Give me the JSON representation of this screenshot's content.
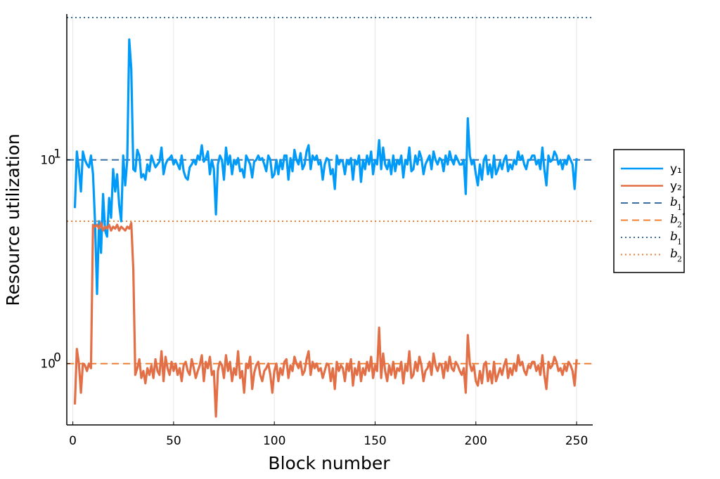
{
  "chart_data": {
    "type": "line",
    "xlabel": "Block number",
    "ylabel": "Resource utilization",
    "xlim": [
      -3,
      258
    ],
    "ylim": [
      0.5,
      52
    ],
    "yscale": "log",
    "xticks": [
      0,
      50,
      100,
      150,
      200,
      250
    ],
    "yticks": [
      {
        "value": 1,
        "base": "10",
        "exp": "0"
      },
      {
        "value": 10,
        "base": "10",
        "exp": "1"
      }
    ],
    "grid": true,
    "legend_position": "right",
    "series": [
      {
        "name": "y₁",
        "color": "#009af9",
        "style": "solid",
        "x": [
          1,
          2,
          3,
          4,
          5,
          6,
          7,
          8,
          9,
          10,
          11,
          12,
          13,
          14,
          15,
          16,
          17,
          18,
          19,
          20,
          21,
          22,
          23,
          24,
          25,
          26,
          27,
          28,
          29,
          30,
          31,
          32,
          33,
          34,
          35,
          36,
          37,
          38,
          39,
          40,
          41,
          42,
          43,
          44,
          45,
          46,
          47,
          48,
          49,
          50,
          51,
          52,
          53,
          54,
          55,
          56,
          57,
          58,
          59,
          60,
          61,
          62,
          63,
          64,
          65,
          66,
          67,
          68,
          69,
          70,
          71,
          72,
          73,
          74,
          75,
          76,
          77,
          78,
          79,
          80,
          81,
          82,
          83,
          84,
          85,
          86,
          87,
          88,
          89,
          90,
          91,
          92,
          93,
          94,
          95,
          96,
          97,
          98,
          99,
          100,
          101,
          102,
          103,
          104,
          105,
          106,
          107,
          108,
          109,
          110,
          111,
          112,
          113,
          114,
          115,
          116,
          117,
          118,
          119,
          120,
          121,
          122,
          123,
          124,
          125,
          126,
          127,
          128,
          129,
          130,
          131,
          132,
          133,
          134,
          135,
          136,
          137,
          138,
          139,
          140,
          141,
          142,
          143,
          144,
          145,
          146,
          147,
          148,
          149,
          150,
          151,
          152,
          153,
          154,
          155,
          156,
          157,
          158,
          159,
          160,
          161,
          162,
          163,
          164,
          165,
          166,
          167,
          168,
          169,
          170,
          171,
          172,
          173,
          174,
          175,
          176,
          177,
          178,
          179,
          180,
          181,
          182,
          183,
          184,
          185,
          186,
          187,
          188,
          189,
          190,
          191,
          192,
          193,
          194,
          195,
          196,
          197,
          198,
          199,
          200,
          201,
          202,
          203,
          204,
          205,
          206,
          207,
          208,
          209,
          210,
          211,
          212,
          213,
          214,
          215,
          216,
          217,
          218,
          219,
          220,
          221,
          222,
          223,
          224,
          225,
          226,
          227,
          228,
          229,
          230,
          231,
          232,
          233,
          234,
          235,
          236,
          237,
          238,
          239,
          240,
          241,
          242,
          243,
          244,
          245,
          246,
          247,
          248,
          249,
          250
        ],
        "y": [
          5.8,
          11.0,
          9.0,
          7.0,
          11.0,
          10.0,
          9.5,
          9.2,
          10.5,
          8.5,
          5.0,
          2.2,
          5.0,
          3.5,
          6.8,
          4.5,
          4.2,
          6.5,
          5.2,
          9.0,
          7.0,
          8.5,
          6.0,
          5.0,
          10.5,
          7.5,
          10.0,
          39.0,
          28.0,
          9.0,
          8.8,
          11.2,
          10.5,
          8.2,
          8.5,
          8.0,
          9.5,
          8.8,
          10.5,
          9.8,
          9.2,
          9.5,
          9.8,
          11.5,
          8.5,
          9.5,
          10.0,
          10.2,
          10.5,
          9.5,
          10.0,
          9.5,
          9.0,
          10.5,
          8.8,
          8.2,
          8.0,
          9.2,
          9.5,
          10.0,
          9.5,
          10.5,
          10.0,
          11.8,
          9.8,
          10.2,
          11.0,
          8.5,
          10.0,
          9.0,
          5.4,
          9.5,
          10.5,
          10.0,
          8.0,
          11.5,
          9.5,
          10.5,
          8.5,
          10.0,
          9.5,
          10.2,
          8.8,
          9.0,
          8.2,
          10.5,
          10.0,
          9.5,
          8.2,
          9.8,
          10.0,
          10.5,
          10.0,
          10.2,
          9.5,
          8.8,
          10.5,
          10.0,
          8.2,
          8.5,
          10.0,
          8.5,
          10.0,
          9.0,
          10.5,
          10.5,
          8.0,
          10.2,
          8.8,
          11.2,
          10.0,
          9.5,
          10.8,
          9.0,
          9.5,
          11.0,
          11.8,
          9.0,
          10.5,
          10.0,
          10.5,
          9.5,
          9.8,
          8.0,
          9.5,
          10.2,
          10.0,
          8.5,
          9.0,
          7.2,
          10.5,
          9.5,
          10.0,
          9.8,
          8.5,
          10.0,
          9.5,
          10.2,
          8.0,
          10.0,
          9.5,
          10.5,
          7.8,
          10.0,
          9.0,
          10.5,
          9.5,
          11.0,
          8.5,
          10.0,
          9.5,
          12.5,
          9.0,
          11.5,
          9.5,
          9.0,
          10.0,
          8.5,
          10.5,
          8.8,
          10.0,
          9.5,
          10.5,
          8.2,
          10.0,
          9.5,
          11.5,
          8.8,
          9.0,
          10.5,
          9.5,
          11.0,
          10.2,
          8.5,
          9.5,
          10.0,
          10.5,
          9.0,
          11.0,
          10.0,
          9.5,
          10.2,
          10.0,
          8.8,
          10.5,
          9.5,
          11.0,
          10.0,
          9.5,
          10.5,
          10.0,
          9.5,
          9.5,
          10.0,
          6.8,
          16.0,
          10.5,
          9.5,
          10.0,
          8.5,
          7.5,
          9.5,
          8.0,
          10.0,
          10.5,
          8.5,
          9.5,
          8.2,
          10.5,
          8.5,
          9.0,
          9.8,
          9.0,
          10.0,
          10.5,
          8.8,
          9.5,
          9.0,
          10.0,
          9.5,
          11.0,
          10.0,
          10.5,
          9.5,
          9.0,
          10.0,
          10.0,
          10.5,
          10.5,
          9.5,
          10.0,
          9.0,
          11.5,
          9.0,
          7.5,
          10.5,
          9.8,
          10.0,
          11.0,
          10.5,
          9.5,
          10.0,
          9.0,
          10.0,
          9.5,
          10.5,
          10.0,
          9.5,
          7.2,
          10.2
        ]
      },
      {
        "name": "y₂",
        "color": "#e26f46",
        "style": "solid",
        "x": [
          1,
          2,
          3,
          4,
          5,
          6,
          7,
          8,
          9,
          10,
          11,
          12,
          13,
          14,
          15,
          16,
          17,
          18,
          19,
          20,
          21,
          22,
          23,
          24,
          25,
          26,
          27,
          28,
          29,
          30,
          31,
          32,
          33,
          34,
          35,
          36,
          37,
          38,
          39,
          40,
          41,
          42,
          43,
          44,
          45,
          46,
          47,
          48,
          49,
          50,
          51,
          52,
          53,
          54,
          55,
          56,
          57,
          58,
          59,
          60,
          61,
          62,
          63,
          64,
          65,
          66,
          67,
          68,
          69,
          70,
          71,
          72,
          73,
          74,
          75,
          76,
          77,
          78,
          79,
          80,
          81,
          82,
          83,
          84,
          85,
          86,
          87,
          88,
          89,
          90,
          91,
          92,
          93,
          94,
          95,
          96,
          97,
          98,
          99,
          100,
          101,
          102,
          103,
          104,
          105,
          106,
          107,
          108,
          109,
          110,
          111,
          112,
          113,
          114,
          115,
          116,
          117,
          118,
          119,
          120,
          121,
          122,
          123,
          124,
          125,
          126,
          127,
          128,
          129,
          130,
          131,
          132,
          133,
          134,
          135,
          136,
          137,
          138,
          139,
          140,
          141,
          142,
          143,
          144,
          145,
          146,
          147,
          148,
          149,
          150,
          151,
          152,
          153,
          154,
          155,
          156,
          157,
          158,
          159,
          160,
          161,
          162,
          163,
          164,
          165,
          166,
          167,
          168,
          169,
          170,
          171,
          172,
          173,
          174,
          175,
          176,
          177,
          178,
          179,
          180,
          181,
          182,
          183,
          184,
          185,
          186,
          187,
          188,
          189,
          190,
          191,
          192,
          193,
          194,
          195,
          196,
          197,
          198,
          199,
          200,
          201,
          202,
          203,
          204,
          205,
          206,
          207,
          208,
          209,
          210,
          211,
          212,
          213,
          214,
          215,
          216,
          217,
          218,
          219,
          220,
          221,
          222,
          223,
          224,
          225,
          226,
          227,
          228,
          229,
          230,
          231,
          232,
          233,
          234,
          235,
          236,
          237,
          238,
          239,
          240,
          241,
          242,
          243,
          244,
          245,
          246,
          247,
          248,
          249,
          250
        ],
        "y": [
          0.63,
          1.18,
          1.0,
          0.72,
          1.0,
          0.98,
          0.92,
          1.0,
          0.95,
          4.8,
          4.7,
          4.8,
          4.6,
          4.9,
          4.5,
          4.7,
          4.6,
          4.8,
          4.5,
          4.7,
          4.6,
          4.8,
          4.5,
          4.7,
          4.6,
          4.5,
          4.7,
          4.6,
          4.9,
          2.9,
          0.88,
          0.95,
          1.05,
          0.85,
          0.92,
          0.8,
          0.95,
          0.88,
          0.98,
          0.85,
          1.05,
          0.92,
          0.88,
          1.15,
          0.82,
          1.08,
          0.95,
          0.88,
          1.02,
          0.92,
          1.0,
          0.88,
          0.95,
          0.82,
          0.98,
          1.02,
          0.92,
          0.88,
          1.05,
          0.95,
          0.85,
          0.92,
          0.98,
          1.1,
          0.82,
          1.02,
          0.95,
          1.08,
          0.88,
          0.92,
          0.55,
          0.92,
          1.02,
          0.98,
          0.85,
          1.1,
          0.92,
          1.02,
          0.82,
          0.95,
          0.88,
          1.15,
          0.85,
          0.92,
          0.72,
          1.0,
          0.95,
          1.08,
          0.75,
          0.9,
          0.98,
          1.02,
          0.88,
          0.82,
          0.92,
          0.95,
          1.0,
          0.88,
          0.72,
          0.92,
          1.0,
          0.82,
          0.95,
          0.88,
          1.02,
          1.05,
          0.85,
          0.98,
          0.92,
          1.08,
          1.0,
          0.95,
          1.02,
          0.88,
          0.92,
          1.05,
          1.15,
          0.88,
          1.02,
          0.95,
          1.0,
          0.92,
          0.95,
          0.85,
          0.92,
          1.0,
          0.98,
          0.82,
          0.95,
          0.75,
          1.02,
          0.92,
          0.98,
          0.95,
          0.82,
          1.0,
          0.92,
          1.05,
          0.78,
          0.95,
          0.88,
          1.02,
          0.82,
          0.95,
          0.88,
          1.02,
          0.92,
          1.08,
          0.85,
          0.98,
          0.92,
          1.5,
          0.85,
          1.12,
          0.92,
          0.82,
          0.98,
          0.88,
          1.02,
          0.85,
          0.95,
          0.92,
          1.02,
          0.8,
          0.98,
          0.92,
          1.15,
          0.85,
          0.88,
          1.02,
          0.92,
          1.08,
          0.98,
          0.82,
          0.92,
          0.95,
          1.02,
          0.88,
          1.12,
          0.98,
          0.92,
          1.0,
          0.98,
          0.85,
          1.02,
          0.92,
          1.08,
          0.95,
          0.92,
          1.02,
          0.98,
          0.92,
          0.88,
          0.95,
          0.72,
          1.38,
          1.0,
          0.92,
          0.98,
          0.82,
          0.78,
          0.92,
          0.8,
          0.98,
          1.02,
          0.82,
          0.92,
          0.8,
          1.02,
          0.82,
          0.88,
          0.95,
          0.88,
          0.98,
          1.05,
          0.85,
          0.95,
          0.88,
          1.0,
          0.92,
          1.1,
          0.98,
          1.02,
          0.92,
          0.88,
          0.98,
          0.95,
          1.02,
          1.02,
          0.92,
          0.98,
          0.88,
          1.1,
          0.88,
          0.75,
          1.02,
          0.95,
          0.98,
          1.08,
          1.02,
          0.92,
          0.95,
          0.88,
          0.98,
          0.92,
          1.02,
          0.98,
          0.92,
          0.78,
          1.05
        ]
      },
      {
        "name": "b₁⋆",
        "color": "#3a6fa5",
        "style": "dashed",
        "constant": 10.0
      },
      {
        "name": "b₂⋆",
        "color": "#f07f30",
        "style": "dashed",
        "constant": 1.0
      },
      {
        "name": "b₁",
        "color": "#3a6fa5",
        "style": "dotted",
        "constant": 50.0
      },
      {
        "name": "b₂",
        "color": "#f07f30",
        "style": "dotted",
        "constant": 5.0
      }
    ],
    "legend": {
      "entries": [
        {
          "label": "y₁",
          "kind": "text",
          "color": "#009af9",
          "style": "solid"
        },
        {
          "label": "y₂",
          "kind": "text",
          "color": "#e26f46",
          "style": "solid"
        },
        {
          "label": "b",
          "sub": "1",
          "sup": "⋆",
          "kind": "math",
          "color": "#3a6fa5",
          "style": "dashed"
        },
        {
          "label": "b",
          "sub": "2",
          "sup": "⋆",
          "kind": "math",
          "color": "#f07f30",
          "style": "dashed"
        },
        {
          "label": "b",
          "sub": "1",
          "sup": "",
          "kind": "math",
          "color": "#3a6fa5",
          "style": "dotted"
        },
        {
          "label": "b",
          "sub": "2",
          "sup": "",
          "kind": "math",
          "color": "#f07f30",
          "style": "dotted"
        }
      ]
    }
  }
}
